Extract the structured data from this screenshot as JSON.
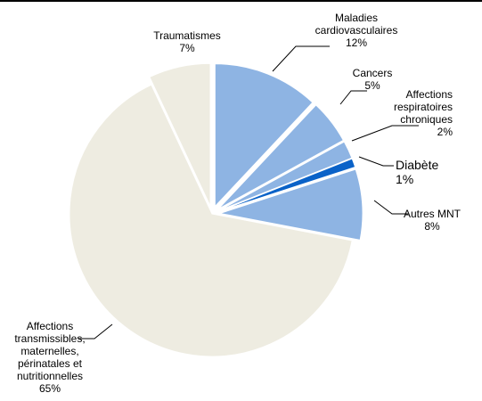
{
  "chart_data": {
    "type": "pie",
    "start_angle_deg": 0,
    "direction": "clockwise",
    "legend": "none",
    "slices": [
      {
        "label": [
          "Maladies",
          "cardiovasculaires"
        ],
        "value": 12,
        "value_label": "12%",
        "color": "#8eb4e3",
        "exploded": true
      },
      {
        "label": [
          "Cancers"
        ],
        "value": 5,
        "value_label": "5%",
        "color": "#8eb4e3",
        "exploded": true
      },
      {
        "label": [
          "Affections",
          "respiratoires",
          "chroniques"
        ],
        "value": 2,
        "value_label": "2%",
        "color": "#8eb4e3",
        "exploded": true
      },
      {
        "label": [
          "Diabète"
        ],
        "value": 1,
        "value_label": "1%",
        "color": "#0a62c8",
        "exploded": true,
        "emphasis": true
      },
      {
        "label": [
          "Autres MNT"
        ],
        "value": 8,
        "value_label": "8%",
        "color": "#8eb4e3",
        "exploded": true
      },
      {
        "label": [
          "Affections",
          "transmissibles,",
          "maternelles,",
          "périnatales et",
          "nutritionnelles"
        ],
        "value": 65,
        "value_label": "65%",
        "color": "#eeece1",
        "exploded": false
      },
      {
        "label": [
          "Traumatismes"
        ],
        "value": 7,
        "value_label": "7%",
        "color": "#eeece1",
        "exploded": true
      }
    ]
  }
}
